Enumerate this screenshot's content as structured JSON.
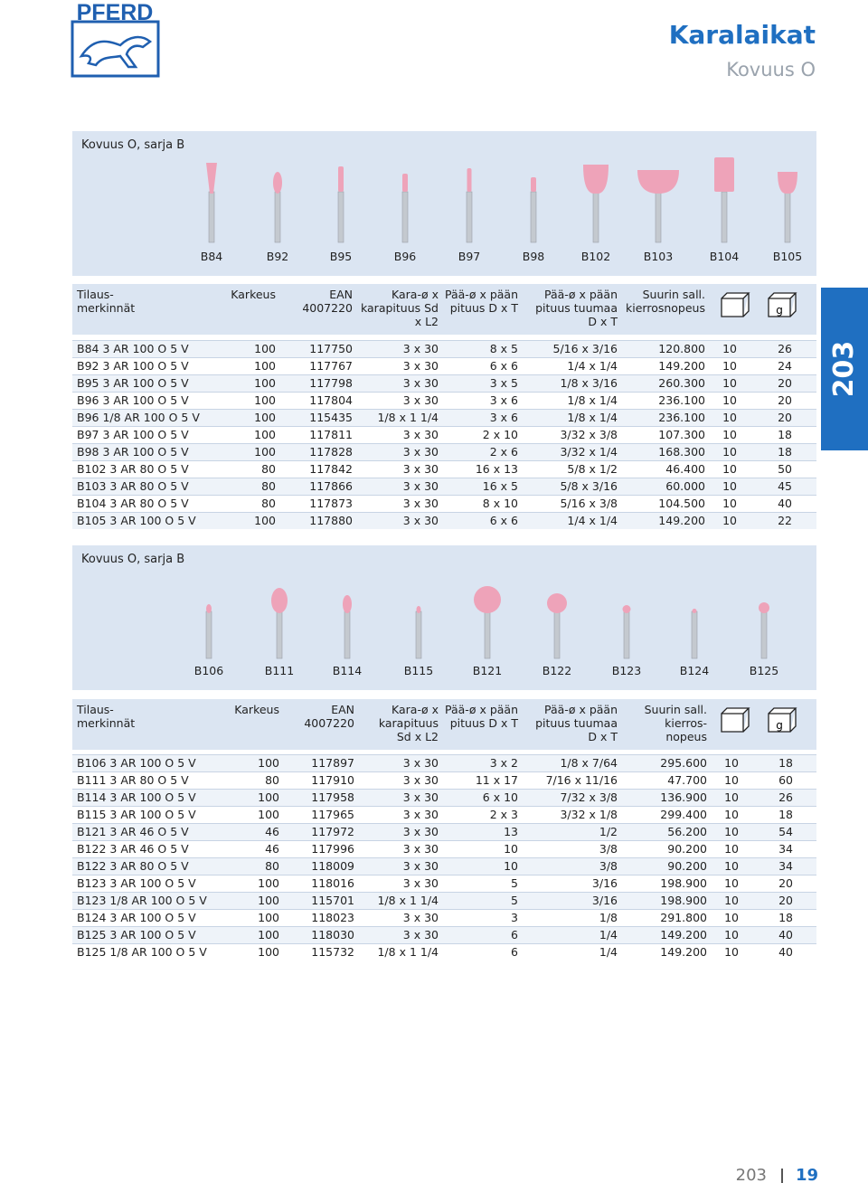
{
  "header": {
    "logo": "PFERD",
    "title": "Karalaikat",
    "subtitle": "Kovuus O"
  },
  "side_tab": "203",
  "sections": [
    {
      "title": "Kovuus O, sarja B",
      "products": [
        "B84",
        "B92",
        "B95",
        "B96",
        "B97",
        "B98",
        "B102",
        "B103",
        "B104",
        "B105"
      ],
      "table": {
        "headers": [
          "Tilaus-\nmerkinnät",
          "Karkeus",
          "EAN\n4007220",
          "Kara-ø x\nkarapituus Sd\nx L2",
          "Pää-ø x pään\npituus D x T",
          "Pää-ø x pään\npituus tuumaa\nD x T",
          "Suurin sall.\nkierrosnopeus"
        ],
        "weight_label": "g",
        "rows": [
          [
            "B84 3 AR 100 O 5 V",
            "100",
            "117750",
            "3 x 30",
            "8 x 5",
            "5/16 x 3/16",
            "120.800",
            "10",
            "26"
          ],
          [
            "B92 3 AR 100 O 5 V",
            "100",
            "117767",
            "3 x 30",
            "6 x 6",
            "1/4 x 1/4",
            "149.200",
            "10",
            "24"
          ],
          [
            "B95 3 AR 100 O 5 V",
            "100",
            "117798",
            "3 x 30",
            "3 x 5",
            "1/8 x 3/16",
            "260.300",
            "10",
            "20"
          ],
          [
            "B96 3 AR 100 O 5 V",
            "100",
            "117804",
            "3 x 30",
            "3 x 6",
            "1/8 x 1/4",
            "236.100",
            "10",
            "20"
          ],
          [
            "B96 1/8 AR 100 O 5 V",
            "100",
            "115435",
            "1/8 x 1 1/4",
            "3 x 6",
            "1/8 x 1/4",
            "236.100",
            "10",
            "20"
          ],
          [
            "B97 3 AR 100 O 5 V",
            "100",
            "117811",
            "3 x 30",
            "2 x 10",
            "3/32 x 3/8",
            "107.300",
            "10",
            "18"
          ],
          [
            "B98 3 AR 100 O 5 V",
            "100",
            "117828",
            "3 x 30",
            "2 x 6",
            "3/32 x 1/4",
            "168.300",
            "10",
            "18"
          ],
          [
            "B102 3 AR 80 O 5 V",
            "80",
            "117842",
            "3 x 30",
            "16 x 13",
            "5/8 x 1/2",
            "46.400",
            "10",
            "50"
          ],
          [
            "B103 3 AR 80 O 5 V",
            "80",
            "117866",
            "3 x 30",
            "16 x 5",
            "5/8 x 3/16",
            "60.000",
            "10",
            "45"
          ],
          [
            "B104 3 AR 80 O 5 V",
            "80",
            "117873",
            "3 x 30",
            "8 x 10",
            "5/16 x 3/8",
            "104.500",
            "10",
            "40"
          ],
          [
            "B105 3 AR 100 O 5 V",
            "100",
            "117880",
            "3 x 30",
            "6 x 6",
            "1/4 x 1/4",
            "149.200",
            "10",
            "22"
          ]
        ]
      }
    },
    {
      "title": "Kovuus O, sarja B",
      "products": [
        "B106",
        "B111",
        "B114",
        "B115",
        "B121",
        "B122",
        "B123",
        "B124",
        "B125"
      ],
      "table": {
        "headers": [
          "Tilaus-\nmerkinnät",
          "Karkeus",
          "EAN\n4007220",
          "Kara-ø x\nkarapituus\nSd x L2",
          "Pää-ø x pään\npituus D x T",
          "Pää-ø x pään\npituus tuumaa\nD x T",
          "Suurin sall.\nkierros-\nnopeus"
        ],
        "weight_label": "g",
        "rows": [
          [
            "B106 3 AR 100 O 5 V",
            "100",
            "117897",
            "3 x 30",
            "3 x 2",
            "1/8 x 7/64",
            "295.600",
            "10",
            "18"
          ],
          [
            "B111 3 AR 80 O 5 V",
            "80",
            "117910",
            "3 x 30",
            "11 x 17",
            "7/16 x 11/16",
            "47.700",
            "10",
            "60"
          ],
          [
            "B114 3 AR 100 O 5 V",
            "100",
            "117958",
            "3 x 30",
            "6 x 10",
            "7/32 x 3/8",
            "136.900",
            "10",
            "26"
          ],
          [
            "B115 3 AR 100 O 5 V",
            "100",
            "117965",
            "3 x 30",
            "2 x 3",
            "3/32 x 1/8",
            "299.400",
            "10",
            "18"
          ],
          [
            "B121 3 AR 46 O 5 V",
            "46",
            "117972",
            "3 x 30",
            "13",
            "1/2",
            "56.200",
            "10",
            "54"
          ],
          [
            "B122 3 AR 46 O 5 V",
            "46",
            "117996",
            "3 x 30",
            "10",
            "3/8",
            "90.200",
            "10",
            "34"
          ],
          [
            "B122 3 AR 80 O 5 V",
            "80",
            "118009",
            "3 x 30",
            "10",
            "3/8",
            "90.200",
            "10",
            "34"
          ],
          [
            "B123 3 AR 100 O 5 V",
            "100",
            "118016",
            "3 x 30",
            "5",
            "3/16",
            "198.900",
            "10",
            "20"
          ],
          [
            "B123 1/8 AR 100 O 5 V",
            "100",
            "115701",
            "1/8 x 1 1/4",
            "5",
            "3/16",
            "198.900",
            "10",
            "20"
          ],
          [
            "B124 3 AR 100 O 5 V",
            "100",
            "118023",
            "3 x 30",
            "3",
            "1/8",
            "291.800",
            "10",
            "18"
          ],
          [
            "B125 3 AR 100 O 5 V",
            "100",
            "118030",
            "3 x 30",
            "6",
            "1/4",
            "149.200",
            "10",
            "40"
          ],
          [
            "B125 1/8 AR 100 O 5 V",
            "100",
            "115732",
            "1/8 x 1 1/4",
            "6",
            "1/4",
            "149.200",
            "10",
            "40"
          ]
        ]
      }
    }
  ],
  "footer": {
    "section": "203",
    "page": "19"
  }
}
